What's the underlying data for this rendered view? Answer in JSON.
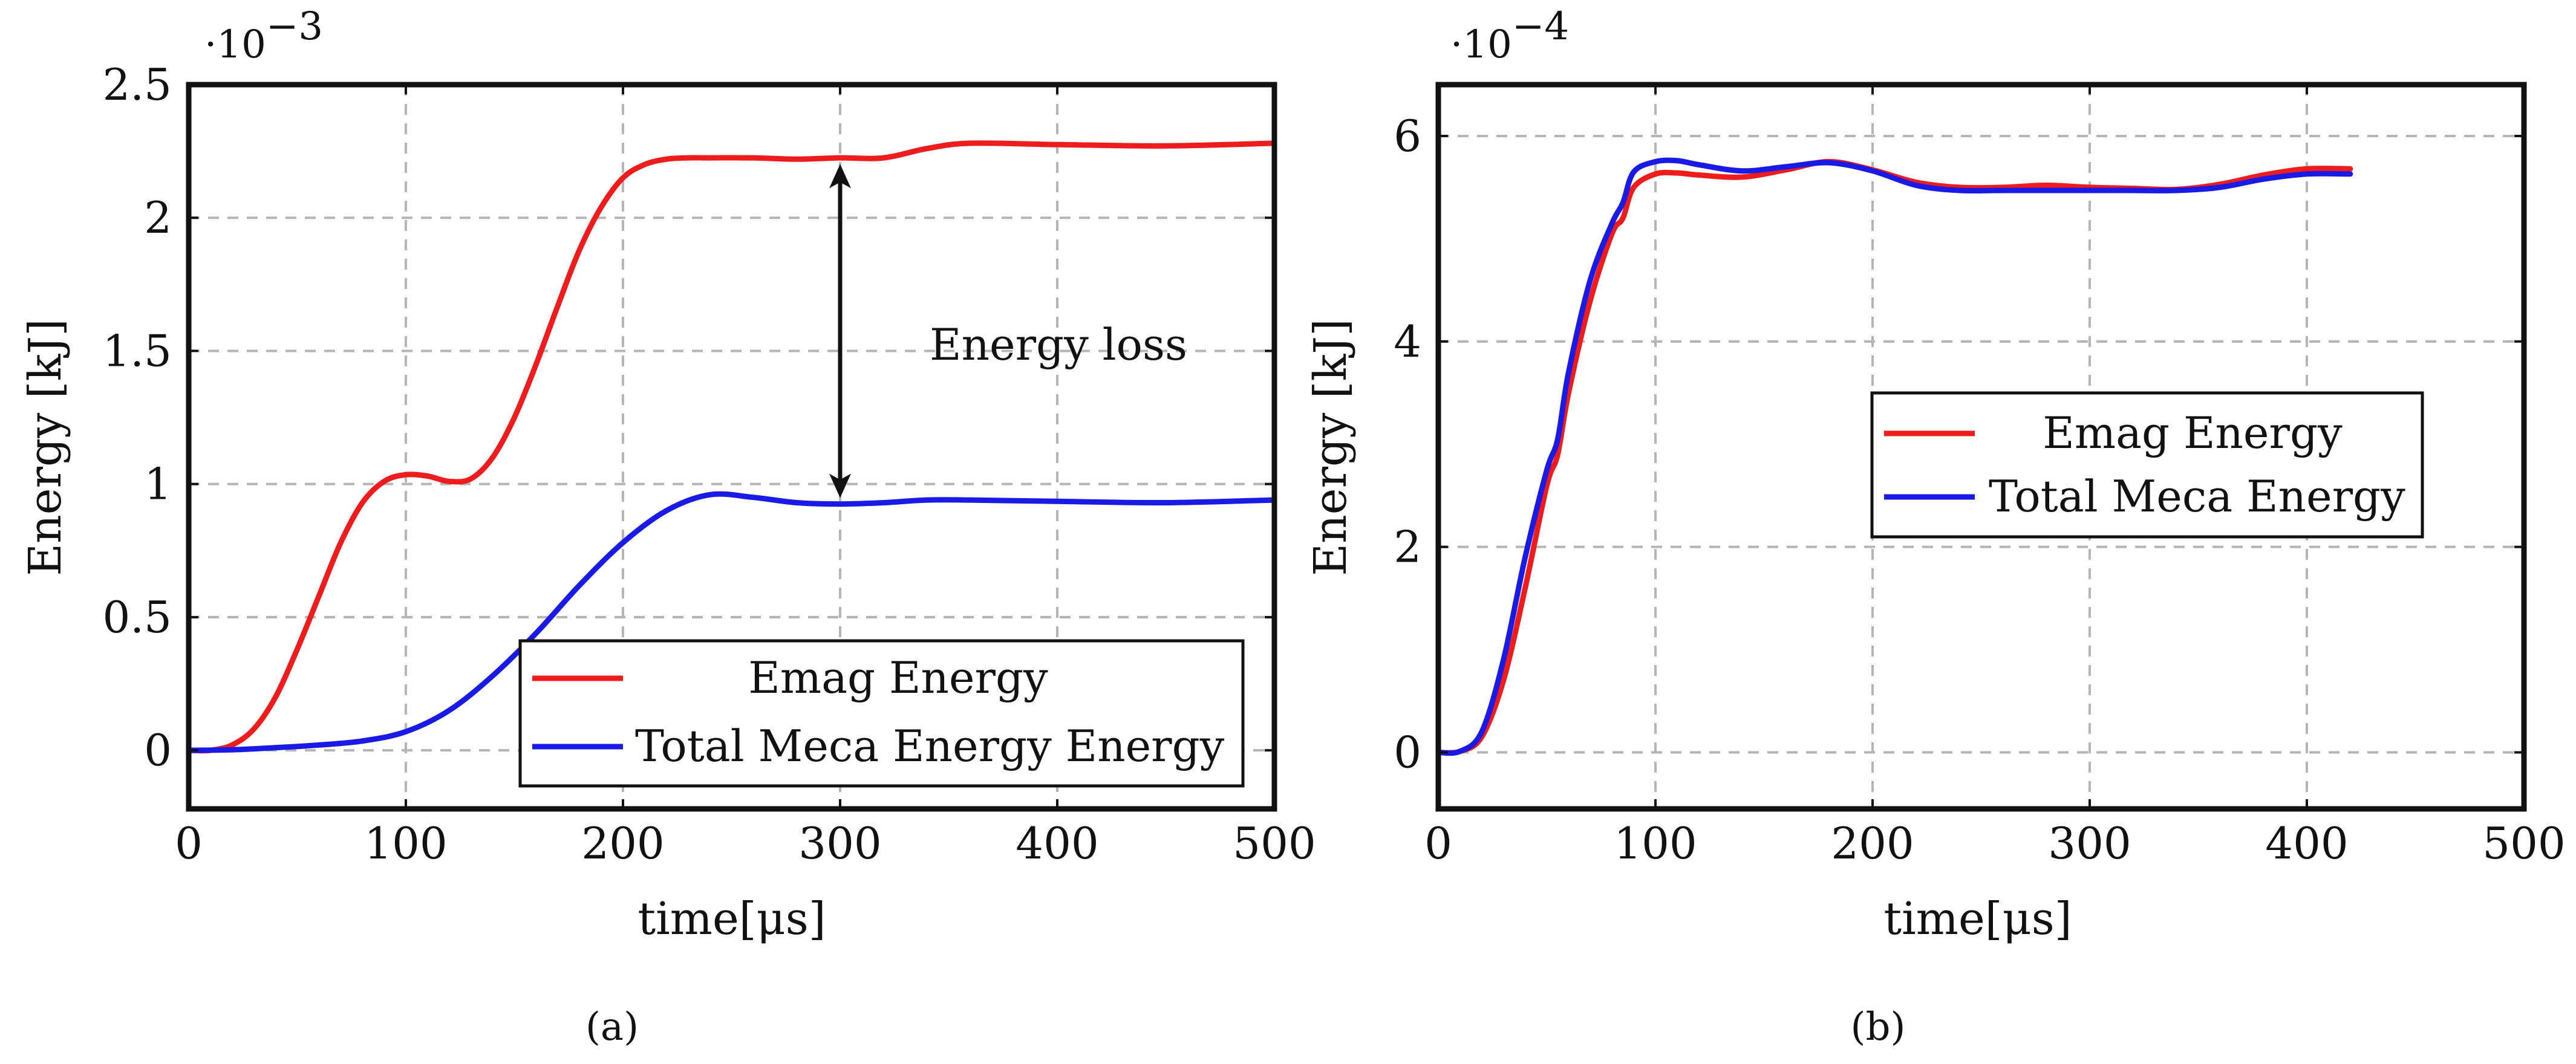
{
  "panel_captions": [
    "(a)",
    "(b)"
  ],
  "chart_data": [
    {
      "type": "line",
      "panel": "a",
      "caption": "(a)",
      "xlabel": "time[μs]",
      "ylabel": "Energy [kJ]",
      "y_multiplier_base": "·10",
      "y_multiplier_exponent": "−3",
      "xlim": [
        0,
        500
      ],
      "ylim": [
        -0.22,
        2.5
      ],
      "xticks": [
        0,
        100,
        200,
        300,
        400,
        500
      ],
      "xtick_labels": [
        "0",
        "100",
        "200",
        "300",
        "400",
        "500"
      ],
      "yticks": [
        0,
        0.5,
        1,
        1.5,
        2,
        2.5
      ],
      "ytick_labels": [
        "0",
        "0.5",
        "1",
        "1.5",
        "2",
        "2.5"
      ],
      "grid": true,
      "legend_position": "lower-right",
      "annotation": {
        "text": "Energy loss",
        "x": 300,
        "y_top": 2.22,
        "y_bottom": 0.93
      },
      "series": [
        {
          "name": "Emag Energy",
          "color": "#ee1c1c",
          "x": [
            0,
            10,
            20,
            30,
            40,
            50,
            60,
            70,
            80,
            90,
            100,
            110,
            120,
            130,
            140,
            150,
            160,
            170,
            180,
            190,
            200,
            210,
            220,
            230,
            240,
            260,
            280,
            300,
            320,
            340,
            360,
            400,
            450,
            500
          ],
          "y": [
            0,
            0,
            0.02,
            0.08,
            0.2,
            0.38,
            0.58,
            0.78,
            0.93,
            1.01,
            1.035,
            1.03,
            1.01,
            1.02,
            1.1,
            1.25,
            1.45,
            1.67,
            1.88,
            2.04,
            2.15,
            2.2,
            2.22,
            2.225,
            2.225,
            2.225,
            2.22,
            2.225,
            2.225,
            2.26,
            2.28,
            2.275,
            2.27,
            2.28
          ]
        },
        {
          "name": "Total Meca Energy Energy",
          "color": "#1a1ae6",
          "x": [
            0,
            20,
            40,
            60,
            80,
            100,
            120,
            140,
            160,
            180,
            200,
            220,
            240,
            260,
            280,
            300,
            320,
            340,
            360,
            400,
            450,
            500
          ],
          "y": [
            0,
            0.002,
            0.01,
            0.02,
            0.035,
            0.07,
            0.15,
            0.28,
            0.44,
            0.62,
            0.78,
            0.9,
            0.96,
            0.95,
            0.93,
            0.925,
            0.93,
            0.94,
            0.94,
            0.935,
            0.93,
            0.94
          ]
        }
      ]
    },
    {
      "type": "line",
      "panel": "b",
      "caption": "(b)",
      "xlabel": "time[μs]",
      "ylabel": "Energy [kJ]",
      "y_multiplier_base": "·10",
      "y_multiplier_exponent": "−4",
      "xlim": [
        0,
        500
      ],
      "ylim": [
        -0.55,
        6.5
      ],
      "xticks": [
        0,
        100,
        200,
        300,
        400,
        500
      ],
      "xtick_labels": [
        "0",
        "100",
        "200",
        "300",
        "400",
        "500"
      ],
      "yticks": [
        0,
        2,
        4,
        6
      ],
      "ytick_labels": [
        "0",
        "2",
        "4",
        "6"
      ],
      "grid": true,
      "legend_position": "center-right",
      "series": [
        {
          "name": "Emag Energy",
          "color": "#ee1c1c",
          "x": [
            0,
            10,
            20,
            30,
            40,
            50,
            55,
            60,
            70,
            80,
            85,
            90,
            100,
            110,
            120,
            140,
            160,
            180,
            200,
            220,
            240,
            260,
            280,
            300,
            320,
            340,
            360,
            380,
            400,
            420
          ],
          "y": [
            0,
            0.01,
            0.15,
            0.7,
            1.6,
            2.6,
            2.9,
            3.5,
            4.4,
            5.05,
            5.2,
            5.5,
            5.63,
            5.64,
            5.62,
            5.6,
            5.67,
            5.75,
            5.67,
            5.55,
            5.5,
            5.5,
            5.52,
            5.5,
            5.49,
            5.48,
            5.53,
            5.62,
            5.68,
            5.68
          ]
        },
        {
          "name": "Total Meca Energy",
          "color": "#1a1ae6",
          "x": [
            0,
            10,
            20,
            30,
            40,
            50,
            55,
            60,
            70,
            80,
            85,
            90,
            100,
            110,
            120,
            140,
            160,
            180,
            200,
            220,
            240,
            260,
            280,
            300,
            320,
            340,
            360,
            380,
            400,
            420
          ],
          "y": [
            0,
            0.01,
            0.2,
            0.9,
            1.9,
            2.75,
            3.05,
            3.7,
            4.6,
            5.15,
            5.35,
            5.65,
            5.75,
            5.76,
            5.72,
            5.66,
            5.7,
            5.74,
            5.66,
            5.52,
            5.47,
            5.47,
            5.47,
            5.47,
            5.47,
            5.47,
            5.5,
            5.58,
            5.63,
            5.63
          ]
        }
      ]
    }
  ]
}
